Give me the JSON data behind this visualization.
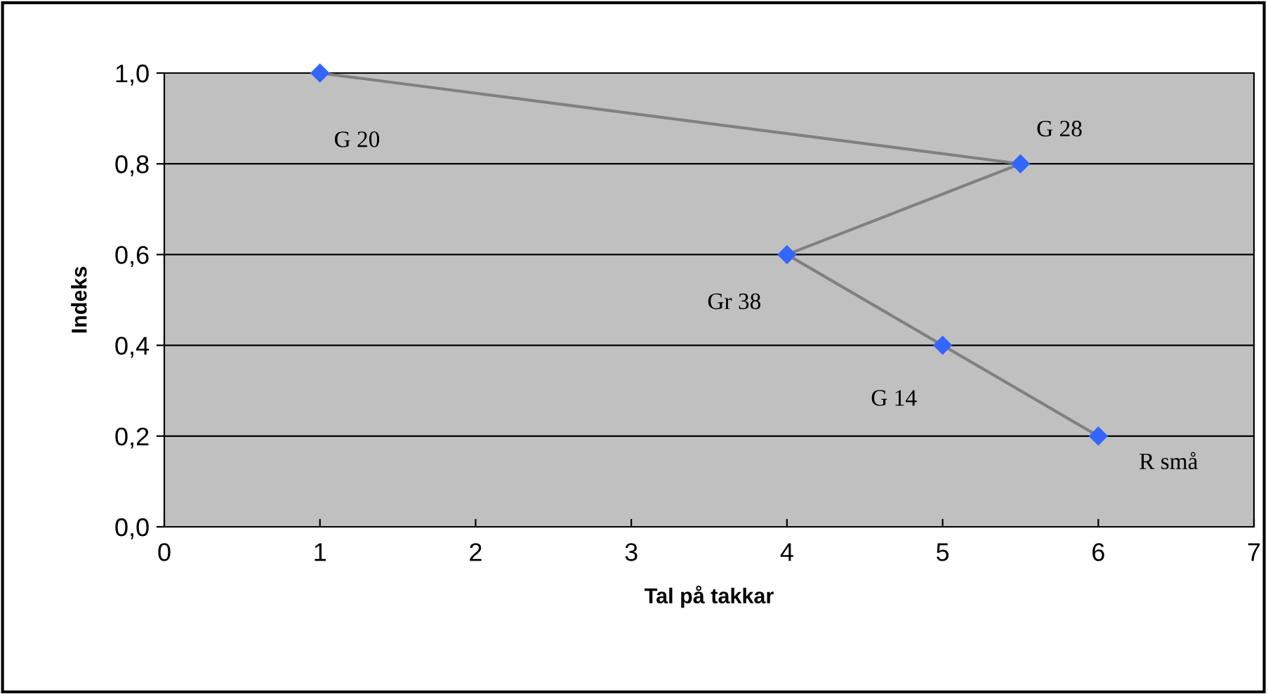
{
  "chart_data": {
    "type": "line",
    "xlabel": "Tal på takkar",
    "ylabel": "Indeks",
    "x": [
      1,
      5.5,
      4,
      5,
      6
    ],
    "series": [
      {
        "color": "#808080",
        "values": [
          1.0,
          0.8,
          0.6,
          0.4,
          0.2
        ]
      }
    ],
    "marker": "diamond",
    "line_style": "solid",
    "xlim": [
      0,
      7
    ],
    "xticks": [
      0,
      1,
      2,
      3,
      4,
      5,
      6,
      7
    ],
    "ylim": [
      0,
      1.0
    ],
    "yticks": [
      {
        "value": 0,
        "label": "0,0"
      },
      {
        "value": 0.2,
        "label": "0,2"
      },
      {
        "value": 0.4,
        "label": "0,4"
      },
      {
        "value": 0.6,
        "label": "0,6"
      },
      {
        "value": 0.8,
        "label": "0,8"
      },
      {
        "value": 1.0,
        "label": "1,0"
      }
    ],
    "grid": "y",
    "legend": false,
    "annotations": [
      {
        "text": "G 20",
        "x": 1,
        "y": 1.0
      },
      {
        "text": "G 28",
        "x": 5.5,
        "y": 0.8
      },
      {
        "text": "Gr 38",
        "x": 4,
        "y": 0.6
      },
      {
        "text": "G 14",
        "x": 5,
        "y": 0.4
      },
      {
        "text": "R små",
        "x": 6,
        "y": 0.2
      }
    ]
  }
}
